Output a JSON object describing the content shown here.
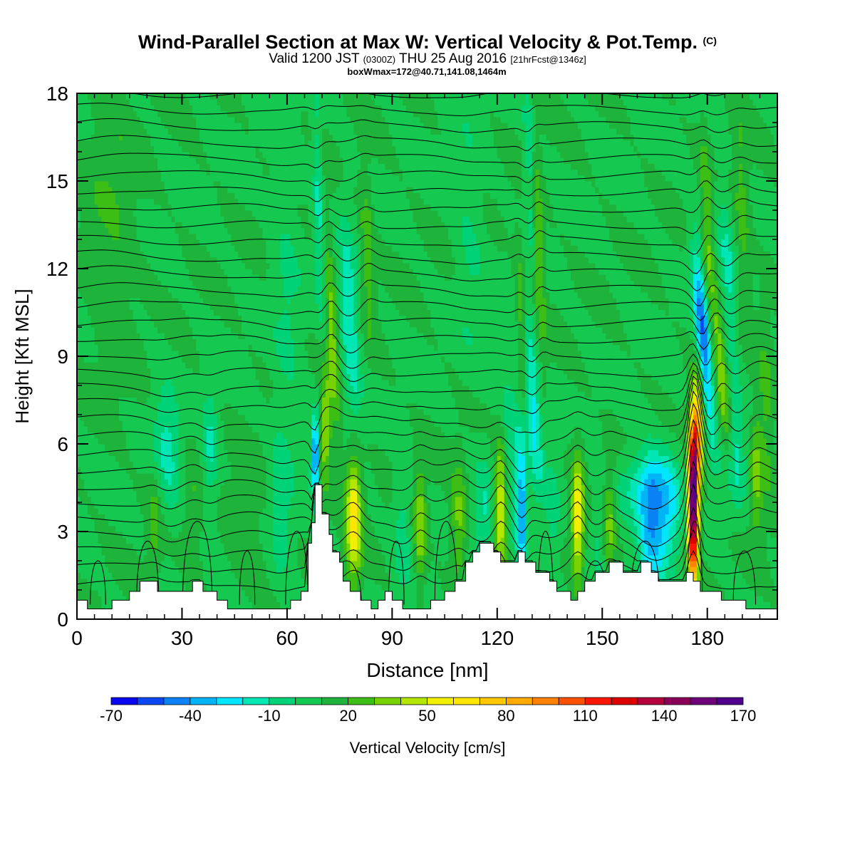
{
  "title": "Wind-Parallel Section at Max W: Vertical Velocity & Pot.Temp.",
  "title_mark": "(C)",
  "subtitle": {
    "valid": "Valid 1200 JST",
    "utc": "(0300Z)",
    "date": "THU 25 Aug 2016",
    "forecast": "[21hrFcst@1346z]"
  },
  "box_info": "boxWmax=172@40.71,141.08,1464m",
  "chart_data": {
    "type": "heatmap",
    "xlabel": "Distance [nm]",
    "ylabel": "Height [Kft MSL]",
    "xlim": [
      0,
      200
    ],
    "ylim": [
      0,
      18
    ],
    "x_ticks": [
      0,
      30,
      60,
      90,
      120,
      150,
      180
    ],
    "y_ticks": [
      0,
      3,
      6,
      9,
      12,
      15,
      18
    ],
    "colorbar": {
      "label": "Vertical Velocity [cm/s]",
      "levels": [
        -70,
        -60,
        -50,
        -40,
        -30,
        -20,
        -10,
        0,
        10,
        20,
        30,
        40,
        50,
        60,
        70,
        80,
        90,
        100,
        110,
        120,
        130,
        140,
        150,
        160,
        170
      ],
      "tick_labels": [
        "-70",
        "-40",
        "-10",
        "20",
        "50",
        "80",
        "110",
        "140",
        "170"
      ],
      "colors": [
        "#0a08f0",
        "#0a46f5",
        "#0a82f5",
        "#00b4f5",
        "#00e6ff",
        "#00e6b4",
        "#00d278",
        "#14c850",
        "#1eb43c",
        "#3cbe14",
        "#78d200",
        "#b4e600",
        "#f0f000",
        "#ffe600",
        "#ffc800",
        "#ffaa00",
        "#ff8200",
        "#ff5000",
        "#ff1400",
        "#dc0000",
        "#b4003c",
        "#8c005a",
        "#6e0078",
        "#50008c"
      ]
    },
    "terrain_kft": [
      [
        0,
        0.65
      ],
      [
        3,
        0.65
      ],
      [
        3,
        0.35
      ],
      [
        10,
        0.35
      ],
      [
        10,
        0.65
      ],
      [
        15,
        0.65
      ],
      [
        15,
        0.95
      ],
      [
        18,
        0.95
      ],
      [
        18,
        1.3
      ],
      [
        23,
        1.3
      ],
      [
        23,
        0.95
      ],
      [
        28,
        0.95
      ],
      [
        28,
        0.95
      ],
      [
        33,
        0.95
      ],
      [
        33,
        1.3
      ],
      [
        36,
        1.3
      ],
      [
        36,
        0.95
      ],
      [
        40,
        0.95
      ],
      [
        40,
        0.65
      ],
      [
        43,
        0.65
      ],
      [
        43,
        0.35
      ],
      [
        61,
        0.35
      ],
      [
        61,
        0.65
      ],
      [
        64,
        0.65
      ],
      [
        64,
        0.95
      ],
      [
        66,
        0.95
      ],
      [
        66,
        2.6
      ],
      [
        67,
        2.6
      ],
      [
        67,
        3.3
      ],
      [
        68,
        3.3
      ],
      [
        68,
        4.6
      ],
      [
        70,
        4.6
      ],
      [
        70,
        3.6
      ],
      [
        72,
        3.6
      ],
      [
        72,
        2.9
      ],
      [
        73,
        2.9
      ],
      [
        73,
        2.3
      ],
      [
        75,
        2.3
      ],
      [
        75,
        1.95
      ],
      [
        76,
        1.95
      ],
      [
        76,
        1.3
      ],
      [
        78,
        1.3
      ],
      [
        78,
        0.95
      ],
      [
        81,
        0.95
      ],
      [
        81,
        0.65
      ],
      [
        84,
        0.65
      ],
      [
        84,
        0.35
      ],
      [
        86,
        0.35
      ],
      [
        86,
        0.65
      ],
      [
        88,
        0.65
      ],
      [
        88,
        0.95
      ],
      [
        90,
        0.95
      ],
      [
        90,
        0.65
      ],
      [
        93,
        0.65
      ],
      [
        93,
        0.35
      ],
      [
        101,
        0.35
      ],
      [
        101,
        0.65
      ],
      [
        105,
        0.65
      ],
      [
        105,
        0.95
      ],
      [
        108,
        0.95
      ],
      [
        108,
        1.3
      ],
      [
        111,
        1.3
      ],
      [
        111,
        1.95
      ],
      [
        113,
        1.95
      ],
      [
        113,
        2.3
      ],
      [
        115,
        2.3
      ],
      [
        115,
        2.6
      ],
      [
        119,
        2.6
      ],
      [
        119,
        2.3
      ],
      [
        121,
        2.3
      ],
      [
        121,
        1.95
      ],
      [
        126,
        1.95
      ],
      [
        126,
        2.3
      ],
      [
        128,
        2.3
      ],
      [
        128,
        1.95
      ],
      [
        131,
        1.95
      ],
      [
        131,
        1.6
      ],
      [
        135,
        1.6
      ],
      [
        135,
        1.3
      ],
      [
        137,
        1.3
      ],
      [
        137,
        0.95
      ],
      [
        141,
        0.95
      ],
      [
        141,
        0.65
      ],
      [
        143,
        0.65
      ],
      [
        143,
        0.95
      ],
      [
        145,
        0.95
      ],
      [
        145,
        1.3
      ],
      [
        148,
        1.3
      ],
      [
        148,
        1.6
      ],
      [
        152,
        1.6
      ],
      [
        152,
        1.95
      ],
      [
        156,
        1.95
      ],
      [
        156,
        1.6
      ],
      [
        161,
        1.6
      ],
      [
        161,
        1.95
      ],
      [
        164,
        1.95
      ],
      [
        164,
        1.6
      ],
      [
        166,
        1.6
      ],
      [
        166,
        1.3
      ],
      [
        174,
        1.3
      ],
      [
        174,
        1.6
      ],
      [
        176,
        1.6
      ],
      [
        176,
        1.3
      ],
      [
        178,
        1.3
      ],
      [
        178,
        0.95
      ],
      [
        184,
        0.95
      ],
      [
        184,
        0.65
      ],
      [
        191,
        0.65
      ],
      [
        191,
        0.35
      ],
      [
        200,
        0.35
      ]
    ],
    "features": [
      {
        "x": 22,
        "z": 3.2,
        "w": 15,
        "sx": 1.3,
        "sz": 1.3,
        "tilt": 0
      },
      {
        "x": 33,
        "z": 3.6,
        "w": 10,
        "sx": 2.0,
        "sz": 1.6,
        "tilt": 0
      },
      {
        "x": 26,
        "z": 5.8,
        "w": -22,
        "sx": 2.5,
        "sz": 1.6,
        "tilt": -0.5
      },
      {
        "x": 38,
        "z": 5.8,
        "w": -20,
        "sx": 1.6,
        "sz": 1.6,
        "tilt": 0
      },
      {
        "x": 48,
        "z": 3.0,
        "w": 10,
        "sx": 4.0,
        "sz": 1.4,
        "tilt": 0
      },
      {
        "x": 58,
        "z": 4.0,
        "w": -15,
        "sx": 2.0,
        "sz": 2.0,
        "tilt": 0
      },
      {
        "x": 68,
        "z": 5.6,
        "w": -55,
        "sx": 0.8,
        "sz": 1.0,
        "tilt": 0
      },
      {
        "x": 71,
        "z": 6.5,
        "w": 30,
        "sx": 1.2,
        "sz": 1.5,
        "tilt": 0
      },
      {
        "x": 79,
        "z": 3.5,
        "w": 55,
        "sx": 1.6,
        "sz": 1.5,
        "tilt": 0
      },
      {
        "x": 73,
        "z": 9.8,
        "w": 25,
        "sx": 1.1,
        "sz": 2.5,
        "tilt": -0.4
      },
      {
        "x": 78,
        "z": 10.0,
        "w": -30,
        "sx": 1.8,
        "sz": 2.3,
        "tilt": -0.4
      },
      {
        "x": 83,
        "z": 12.5,
        "w": 20,
        "sx": 1.2,
        "sz": 2.0,
        "tilt": -0.3
      },
      {
        "x": 69,
        "z": 14.0,
        "w": -22,
        "sx": 1.0,
        "sz": 2.5,
        "tilt": -0.2
      },
      {
        "x": 93,
        "z": 3.2,
        "w": -15,
        "sx": 1.8,
        "sz": 1.6,
        "tilt": 0
      },
      {
        "x": 98,
        "z": 3.2,
        "w": 30,
        "sx": 1.2,
        "sz": 1.4,
        "tilt": 0
      },
      {
        "x": 109,
        "z": 3.3,
        "w": 25,
        "sx": 1.5,
        "sz": 1.4,
        "tilt": 0
      },
      {
        "x": 116,
        "z": 3.5,
        "w": -18,
        "sx": 1.8,
        "sz": 1.5,
        "tilt": 0
      },
      {
        "x": 121,
        "z": 3.8,
        "w": 45,
        "sx": 1.2,
        "sz": 1.5,
        "tilt": 0
      },
      {
        "x": 127,
        "z": 3.6,
        "w": -45,
        "sx": 1.1,
        "sz": 1.8,
        "tilt": 0
      },
      {
        "x": 124,
        "z": 6.5,
        "w": -15,
        "sx": 2.0,
        "sz": 2.5,
        "tilt": -0.3
      },
      {
        "x": 130,
        "z": 7.5,
        "w": -35,
        "sx": 1.5,
        "sz": 2.2,
        "tilt": -0.6
      },
      {
        "x": 127,
        "z": 10.0,
        "w": 25,
        "sx": 1.0,
        "sz": 2.0,
        "tilt": -0.3
      },
      {
        "x": 132,
        "z": 12.5,
        "w": 20,
        "sx": 1.0,
        "sz": 2.5,
        "tilt": -0.3
      },
      {
        "x": 129,
        "z": 16.0,
        "w": -18,
        "sx": 1.0,
        "sz": 2.0,
        "tilt": -0.2
      },
      {
        "x": 136,
        "z": 3.3,
        "w": -15,
        "sx": 1.5,
        "sz": 1.5,
        "tilt": 0
      },
      {
        "x": 143,
        "z": 3.5,
        "w": 50,
        "sx": 1.2,
        "sz": 1.5,
        "tilt": 0
      },
      {
        "x": 149,
        "z": 3.2,
        "w": -12,
        "sx": 1.5,
        "sz": 1.5,
        "tilt": 0
      },
      {
        "x": 152,
        "z": 3.5,
        "w": 25,
        "sx": 1.3,
        "sz": 1.5,
        "tilt": 0
      },
      {
        "x": 164,
        "z": 3.2,
        "w": -40,
        "sx": 2.5,
        "sz": 1.6,
        "tilt": 0
      },
      {
        "x": 169,
        "z": 3.5,
        "w": -25,
        "sx": 2.5,
        "sz": 1.4,
        "tilt": 0
      },
      {
        "x": 162,
        "z": 4.5,
        "w": -25,
        "sx": 6.0,
        "sz": 0.8,
        "tilt": 0
      },
      {
        "x": 176,
        "z": 4.0,
        "w": 170,
        "sx": 1.0,
        "sz": 1.9,
        "tilt": 0
      },
      {
        "x": 177.5,
        "z": 6.5,
        "w": 60,
        "sx": 1.2,
        "sz": 1.2,
        "tilt": 0
      },
      {
        "x": 179,
        "z": 9.5,
        "w": -60,
        "sx": 1.4,
        "sz": 2.2,
        "tilt": -0.7
      },
      {
        "x": 184,
        "z": 8.5,
        "w": 30,
        "sx": 1.2,
        "sz": 2.2,
        "tilt": -0.7
      },
      {
        "x": 186,
        "z": 11.5,
        "w": -20,
        "sx": 1.5,
        "sz": 2.5,
        "tilt": -0.5
      },
      {
        "x": 180,
        "z": 13.0,
        "w": 20,
        "sx": 1.0,
        "sz": 2.5,
        "tilt": -0.3
      },
      {
        "x": 190,
        "z": 14.0,
        "w": 15,
        "sx": 1.5,
        "sz": 2.5,
        "tilt": -0.3
      },
      {
        "x": 188,
        "z": 5.5,
        "w": -20,
        "sx": 2.0,
        "sz": 1.5,
        "tilt": 0
      },
      {
        "x": 194,
        "z": 5.0,
        "w": 25,
        "sx": 1.3,
        "sz": 1.5,
        "tilt": 0
      },
      {
        "x": 197,
        "z": 7.0,
        "w": 15,
        "sx": 1.5,
        "sz": 2.0,
        "tilt": -0.3
      },
      {
        "x": 60,
        "z": 11.0,
        "w": -10,
        "sx": 3.0,
        "sz": 4.0,
        "tilt": -0.2
      },
      {
        "x": 112,
        "z": 13.0,
        "w": -10,
        "sx": 3.0,
        "sz": 3.0,
        "tilt": -0.2
      },
      {
        "x": 10,
        "z": 14.0,
        "w": 10,
        "sx": 5.0,
        "sz": 4.0,
        "tilt": 0
      }
    ],
    "isentrope_count": 31
  }
}
